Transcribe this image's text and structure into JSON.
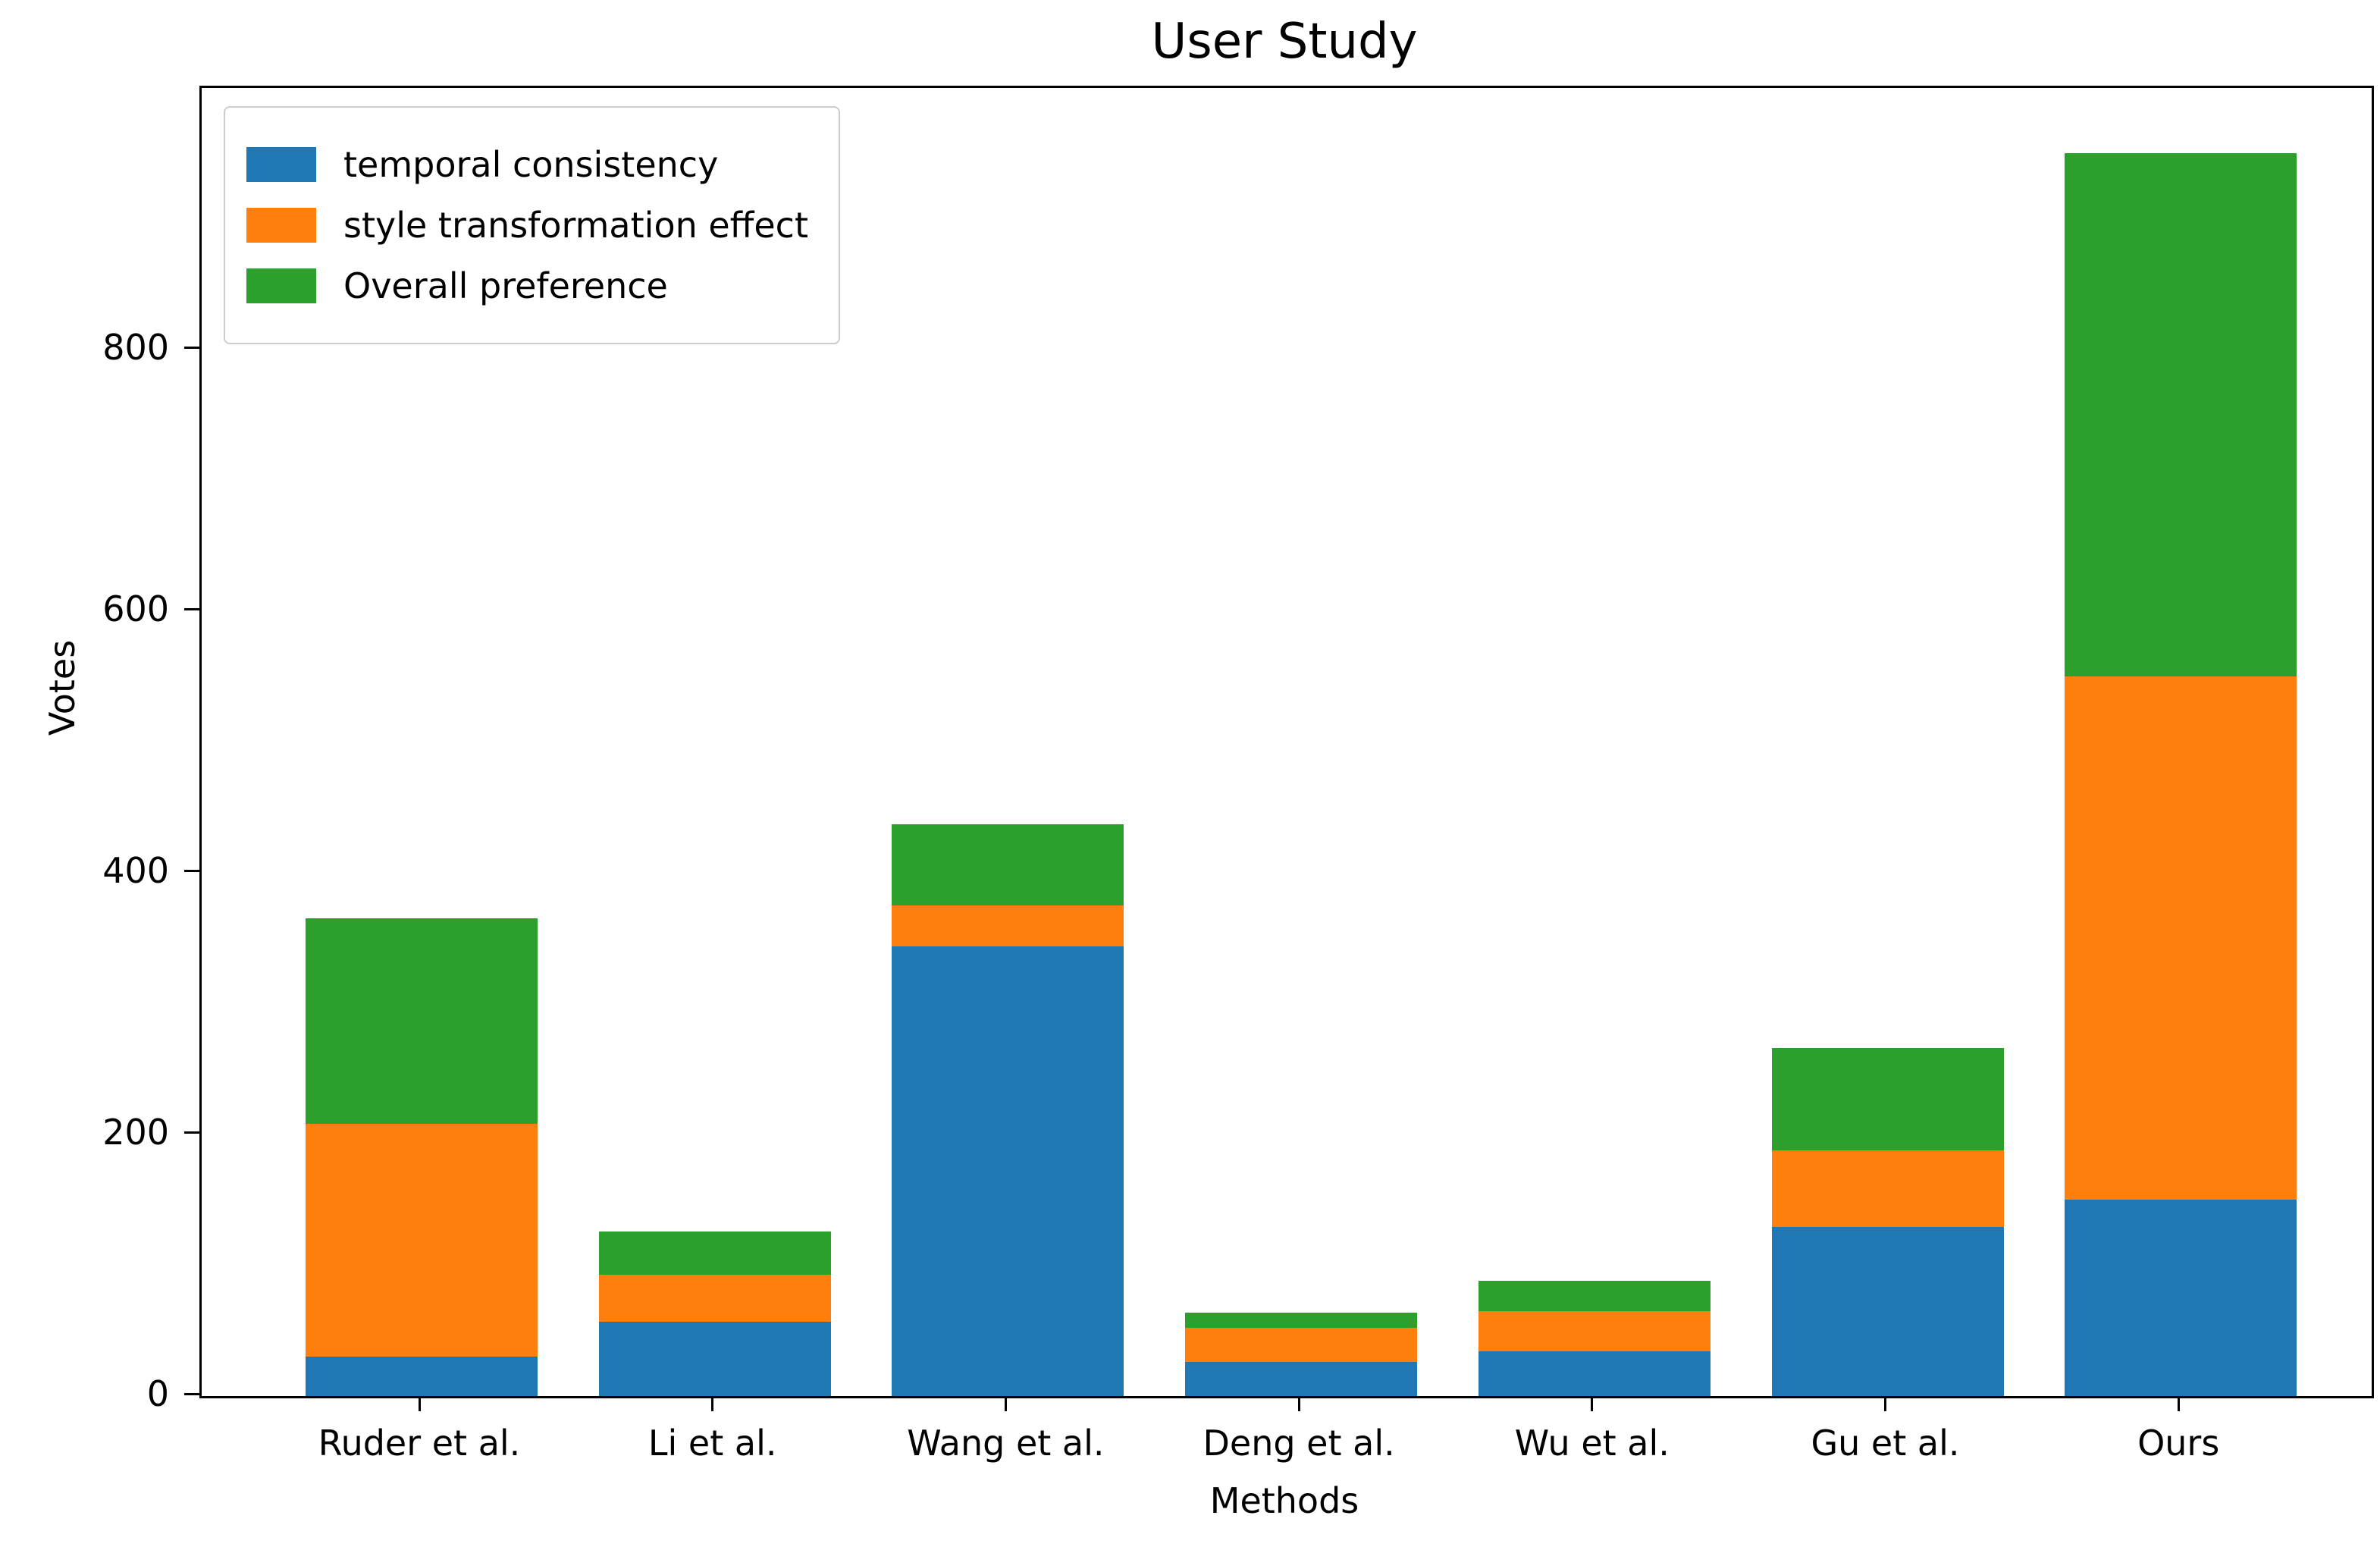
{
  "chart_data": {
    "type": "bar",
    "variant": "stacked",
    "title": "User Study",
    "xlabel": "Methods",
    "ylabel": "Votes",
    "categories": [
      "Ruder et al.",
      "Li et al.",
      "Wang et al.",
      "Deng et al.",
      "Wu et al.",
      "Gu et al.",
      "Ours"
    ],
    "series": [
      {
        "name": "temporal consistency",
        "color": "#1f77b4",
        "values": [
          30,
          57,
          344,
          26,
          34,
          129,
          150
        ]
      },
      {
        "name": "style transformation effect",
        "color": "#ff7f0e",
        "values": [
          178,
          36,
          31,
          26,
          31,
          59,
          400
        ]
      },
      {
        "name": "Overall preference",
        "color": "#2ca02c",
        "values": [
          157,
          33,
          62,
          12,
          23,
          78,
          400
        ]
      }
    ],
    "totals": [
      365,
      126,
      437,
      64,
      88,
      266,
      950
    ],
    "y_ticks": [
      0,
      200,
      400,
      600,
      800
    ],
    "ylim": [
      0,
      1000
    ],
    "grid": false,
    "legend_position": "upper left",
    "axis_color": "#000000",
    "background_color": "#ffffff"
  }
}
